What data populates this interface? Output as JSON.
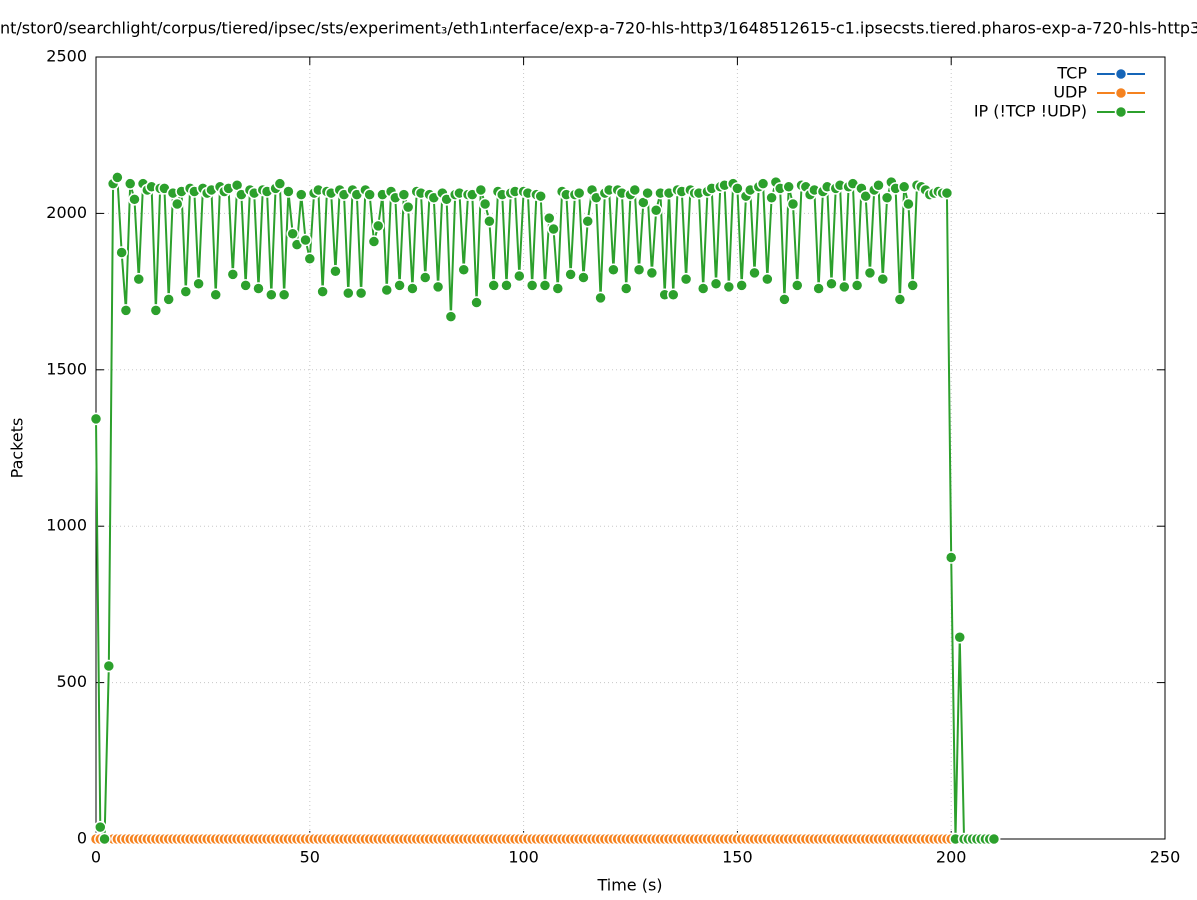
{
  "chart_data": {
    "type": "line",
    "title": "nt/stor0/searchlight/corpus/tiered/ipsec/sts/experiment₃/eth1ᵢnterface/exp-a-720-hls-http3/1648512615-c1.ipsecsts.tiered.pharos-exp-a-720-hls-http3",
    "x_label": "Time (s)",
    "y_label": "Packets",
    "xlim": [
      0,
      250
    ],
    "xticks": [
      0,
      50,
      100,
      150,
      200,
      250
    ],
    "ylim": [
      0,
      2500
    ],
    "yticks": [
      0,
      500,
      1000,
      1500,
      2000,
      2500
    ],
    "grid": true,
    "legend": "top-right",
    "x": [
      0,
      1,
      2,
      3,
      4,
      5,
      6,
      7,
      8,
      9,
      10,
      11,
      12,
      13,
      14,
      15,
      16,
      17,
      18,
      19,
      20,
      21,
      22,
      23,
      24,
      25,
      26,
      27,
      28,
      29,
      30,
      31,
      32,
      33,
      34,
      35,
      36,
      37,
      38,
      39,
      40,
      41,
      42,
      43,
      44,
      45,
      46,
      47,
      48,
      49,
      50,
      51,
      52,
      53,
      54,
      55,
      56,
      57,
      58,
      59,
      60,
      61,
      62,
      63,
      64,
      65,
      66,
      67,
      68,
      69,
      70,
      71,
      72,
      73,
      74,
      75,
      76,
      77,
      78,
      79,
      80,
      81,
      82,
      83,
      84,
      85,
      86,
      87,
      88,
      89,
      90,
      91,
      92,
      93,
      94,
      95,
      96,
      97,
      98,
      99,
      100,
      101,
      102,
      103,
      104,
      105,
      106,
      107,
      108,
      109,
      110,
      111,
      112,
      113,
      114,
      115,
      116,
      117,
      118,
      119,
      120,
      121,
      122,
      123,
      124,
      125,
      126,
      127,
      128,
      129,
      130,
      131,
      132,
      133,
      134,
      135,
      136,
      137,
      138,
      139,
      140,
      141,
      142,
      143,
      144,
      145,
      146,
      147,
      148,
      149,
      150,
      151,
      152,
      153,
      154,
      155,
      156,
      157,
      158,
      159,
      160,
      161,
      162,
      163,
      164,
      165,
      166,
      167,
      168,
      169,
      170,
      171,
      172,
      173,
      174,
      175,
      176,
      177,
      178,
      179,
      180,
      181,
      182,
      183,
      184,
      185,
      186,
      187,
      188,
      189,
      190,
      191,
      192,
      193,
      194,
      195,
      196,
      197,
      198,
      199,
      200,
      201,
      202,
      203,
      204,
      205,
      206,
      207,
      208,
      209,
      210
    ],
    "series": [
      {
        "name": "TCP",
        "color": "#1565b8",
        "values": [
          0,
          0,
          0,
          0,
          0,
          0,
          0,
          0,
          0,
          0,
          0,
          0,
          0,
          0,
          0,
          0,
          0,
          0,
          0,
          0,
          0,
          0,
          0,
          0,
          0,
          0,
          0,
          0,
          0,
          0,
          0,
          0,
          0,
          0,
          0,
          0,
          0,
          0,
          0,
          0,
          0,
          0,
          0,
          0,
          0,
          0,
          0,
          0,
          0,
          0,
          0,
          0,
          0,
          0,
          0,
          0,
          0,
          0,
          0,
          0,
          0,
          0,
          0,
          0,
          0,
          0,
          0,
          0,
          0,
          0,
          0,
          0,
          0,
          0,
          0,
          0,
          0,
          0,
          0,
          0,
          0,
          0,
          0,
          0,
          0,
          0,
          0,
          0,
          0,
          0,
          0,
          0,
          0,
          0,
          0,
          0,
          0,
          0,
          0,
          0,
          0,
          0,
          0,
          0,
          0,
          0,
          0,
          0,
          0,
          0,
          0,
          0,
          0,
          0,
          0,
          0,
          0,
          0,
          0,
          0,
          0,
          0,
          0,
          0,
          0,
          0,
          0,
          0,
          0,
          0,
          0,
          0,
          0,
          0,
          0,
          0,
          0,
          0,
          0,
          0,
          0,
          0,
          0,
          0,
          0,
          0,
          0,
          0,
          0,
          0,
          0,
          0,
          0,
          0,
          0,
          0,
          0,
          0,
          0,
          0,
          0,
          0,
          0,
          0,
          0,
          0,
          0,
          0,
          0,
          0,
          0,
          0,
          0,
          0,
          0,
          0,
          0,
          0,
          0,
          0,
          0,
          0,
          0,
          0,
          0,
          0,
          0,
          0,
          0,
          0,
          0,
          0,
          0,
          0,
          0,
          0,
          0,
          0,
          0,
          0,
          0,
          0,
          0,
          0,
          0,
          0,
          0,
          0,
          0,
          0,
          0
        ]
      },
      {
        "name": "UDP",
        "color": "#f5821f",
        "values": [
          0,
          0,
          0,
          0,
          0,
          0,
          0,
          0,
          0,
          0,
          0,
          0,
          0,
          0,
          0,
          0,
          0,
          0,
          0,
          0,
          0,
          0,
          0,
          0,
          0,
          0,
          0,
          0,
          0,
          0,
          0,
          0,
          0,
          0,
          0,
          0,
          0,
          0,
          0,
          0,
          0,
          0,
          0,
          0,
          0,
          0,
          0,
          0,
          0,
          0,
          0,
          0,
          0,
          0,
          0,
          0,
          0,
          0,
          0,
          0,
          0,
          0,
          0,
          0,
          0,
          0,
          0,
          0,
          0,
          0,
          0,
          0,
          0,
          0,
          0,
          0,
          0,
          0,
          0,
          0,
          0,
          0,
          0,
          0,
          0,
          0,
          0,
          0,
          0,
          0,
          0,
          0,
          0,
          0,
          0,
          0,
          0,
          0,
          0,
          0,
          0,
          0,
          0,
          0,
          0,
          0,
          0,
          0,
          0,
          0,
          0,
          0,
          0,
          0,
          0,
          0,
          0,
          0,
          0,
          0,
          0,
          0,
          0,
          0,
          0,
          0,
          0,
          0,
          0,
          0,
          0,
          0,
          0,
          0,
          0,
          0,
          0,
          0,
          0,
          0,
          0,
          0,
          0,
          0,
          0,
          0,
          0,
          0,
          0,
          0,
          0,
          0,
          0,
          0,
          0,
          0,
          0,
          0,
          0,
          0,
          0,
          0,
          0,
          0,
          0,
          0,
          0,
          0,
          0,
          0,
          0,
          0,
          0,
          0,
          0,
          0,
          0,
          0,
          0,
          0,
          0,
          0,
          0,
          0,
          0,
          0,
          0,
          0,
          0,
          0,
          0,
          0,
          0,
          0,
          0,
          0,
          0,
          0,
          0,
          0,
          0,
          0,
          0,
          0,
          0,
          0,
          0,
          0,
          0,
          0,
          0
        ]
      },
      {
        "name": "IP (!TCP  !UDP)",
        "color": "#2ca02c",
        "values": [
          1343,
          38,
          0,
          553,
          2095,
          2115,
          1875,
          1690,
          2095,
          2045,
          1790,
          2095,
          2075,
          2085,
          1690,
          2080,
          2080,
          1725,
          2065,
          2030,
          2070,
          1750,
          2080,
          2070,
          1775,
          2080,
          2065,
          2075,
          1740,
          2085,
          2070,
          2080,
          1805,
          2090,
          2060,
          1770,
          2075,
          2065,
          1760,
          2075,
          2070,
          1740,
          2080,
          2095,
          1740,
          2070,
          1935,
          1900,
          2060,
          1915,
          1855,
          2065,
          2075,
          1750,
          2070,
          2065,
          1815,
          2075,
          2060,
          1745,
          2075,
          2060,
          1745,
          2075,
          2060,
          1910,
          1960,
          2060,
          1755,
          2070,
          2050,
          1770,
          2060,
          2020,
          1760,
          2070,
          2065,
          1795,
          2060,
          2050,
          1765,
          2065,
          2045,
          1670,
          2060,
          2065,
          1820,
          2060,
          2060,
          1715,
          2075,
          2030,
          1975,
          1770,
          2070,
          2060,
          1770,
          2065,
          2070,
          1800,
          2070,
          2065,
          1770,
          2060,
          2055,
          1770,
          1985,
          1950,
          1760,
          2070,
          2060,
          1805,
          2060,
          2065,
          1795,
          1975,
          2075,
          2050,
          1730,
          2065,
          2075,
          1820,
          2075,
          2065,
          1760,
          2060,
          2075,
          1820,
          2035,
          2065,
          1810,
          2010,
          2065,
          1740,
          2065,
          1740,
          2075,
          2070,
          1790,
          2075,
          2065,
          2065,
          1760,
          2070,
          2080,
          1775,
          2085,
          2090,
          1765,
          2095,
          2080,
          1770,
          2055,
          2075,
          1810,
          2085,
          2095,
          1790,
          2050,
          2100,
          2080,
          1725,
          2085,
          2030,
          1770,
          2090,
          2085,
          2060,
          2075,
          1760,
          2070,
          2085,
          1775,
          2080,
          2090,
          1765,
          2085,
          2095,
          1770,
          2080,
          2055,
          1810,
          2075,
          2090,
          1790,
          2050,
          2100,
          2080,
          1725,
          2085,
          2030,
          1770,
          2090,
          2085,
          2075,
          2060,
          2065,
          2070,
          2065,
          2065,
          900,
          0,
          645,
          0,
          0,
          0,
          0,
          0,
          0,
          0,
          0
        ]
      }
    ]
  }
}
